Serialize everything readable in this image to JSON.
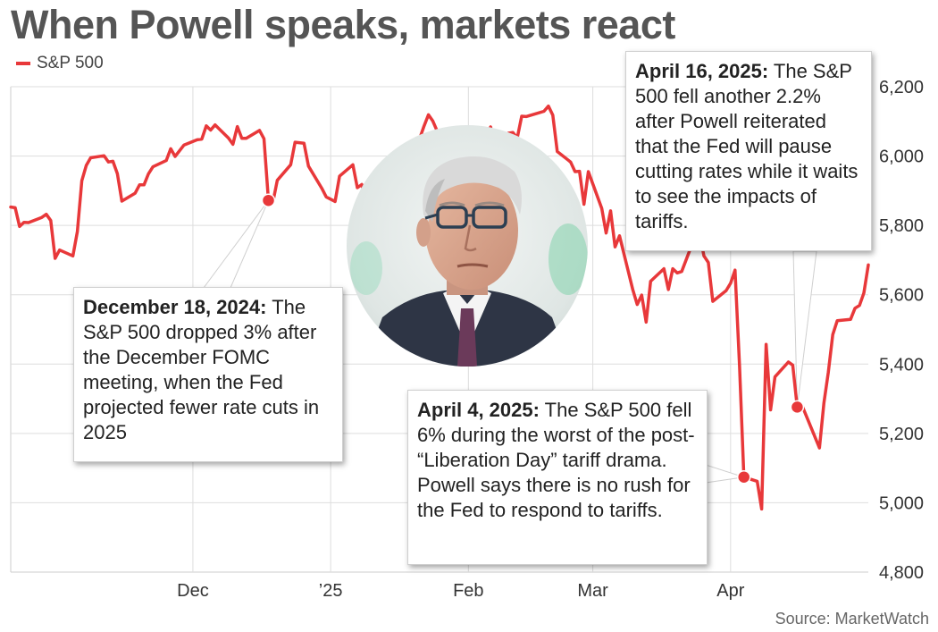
{
  "title": "When Powell speaks, markets react",
  "legend": {
    "label": "S&P 500",
    "color": "#e8383a"
  },
  "source": "Source: MarketWatch",
  "photo": {
    "subject": "portrait-photo"
  },
  "annotations": [
    {
      "date": "December 18, 2024:",
      "text": "The S&P 500 dropped 3% after the December FOMC meeting, when the Fed projected fewer rate cuts in 2025"
    },
    {
      "date": "April 4, 2025:",
      "text": "The S&P 500 fell 6% during the worst of the post- “Liberation Day” tariff drama. Powell says there is no rush for the Fed to respond to tariffs."
    },
    {
      "date": "April 16, 2025:",
      "text": "The S&P 500 fell another 2.2% after Powell reiterated that the Fed will pause cutting rates while it waits to see the impacts of tariffs."
    }
  ],
  "chart_data": {
    "type": "line",
    "title": "When Powell speaks, markets react",
    "series": [
      {
        "name": "S&P 500",
        "color": "#e8383a",
        "x": [
          "2024-10-21",
          "2024-10-22",
          "2024-10-23",
          "2024-10-24",
          "2024-10-25",
          "2024-10-28",
          "2024-10-29",
          "2024-10-30",
          "2024-10-31",
          "2024-11-01",
          "2024-11-04",
          "2024-11-05",
          "2024-11-06",
          "2024-11-07",
          "2024-11-08",
          "2024-11-11",
          "2024-11-12",
          "2024-11-13",
          "2024-11-14",
          "2024-11-15",
          "2024-11-18",
          "2024-11-19",
          "2024-11-20",
          "2024-11-21",
          "2024-11-22",
          "2024-11-25",
          "2024-11-26",
          "2024-11-27",
          "2024-11-29",
          "2024-12-02",
          "2024-12-03",
          "2024-12-04",
          "2024-12-05",
          "2024-12-06",
          "2024-12-09",
          "2024-12-10",
          "2024-12-11",
          "2024-12-12",
          "2024-12-13",
          "2024-12-16",
          "2024-12-17",
          "2024-12-18",
          "2024-12-19",
          "2024-12-20",
          "2024-12-23",
          "2024-12-24",
          "2024-12-26",
          "2024-12-27",
          "2024-12-30",
          "2024-12-31",
          "2025-01-02",
          "2025-01-03",
          "2025-01-06",
          "2025-01-07",
          "2025-01-08",
          "2025-01-10",
          "2025-01-13",
          "2025-01-14",
          "2025-01-15",
          "2025-01-16",
          "2025-01-17",
          "2025-01-21",
          "2025-01-22",
          "2025-01-23",
          "2025-01-24",
          "2025-01-27",
          "2025-01-28",
          "2025-01-29",
          "2025-01-30",
          "2025-01-31",
          "2025-02-03",
          "2025-02-04",
          "2025-02-05",
          "2025-02-06",
          "2025-02-07",
          "2025-02-10",
          "2025-02-11",
          "2025-02-12",
          "2025-02-13",
          "2025-02-14",
          "2025-02-18",
          "2025-02-19",
          "2025-02-20",
          "2025-02-21",
          "2025-02-24",
          "2025-02-25",
          "2025-02-26",
          "2025-02-27",
          "2025-02-28",
          "2025-03-03",
          "2025-03-04",
          "2025-03-05",
          "2025-03-06",
          "2025-03-07",
          "2025-03-10",
          "2025-03-11",
          "2025-03-12",
          "2025-03-13",
          "2025-03-14",
          "2025-03-17",
          "2025-03-18",
          "2025-03-19",
          "2025-03-20",
          "2025-03-21",
          "2025-03-24",
          "2025-03-25",
          "2025-03-26",
          "2025-03-27",
          "2025-03-28",
          "2025-03-31",
          "2025-04-01",
          "2025-04-02",
          "2025-04-03",
          "2025-04-04",
          "2025-04-07",
          "2025-04-08",
          "2025-04-09",
          "2025-04-10",
          "2025-04-11",
          "2025-04-14",
          "2025-04-15",
          "2025-04-16",
          "2025-04-17",
          "2025-04-21",
          "2025-04-22",
          "2025-04-23",
          "2025-04-24",
          "2025-04-25",
          "2025-04-28",
          "2025-04-29",
          "2025-04-30",
          "2025-05-01",
          "2025-05-02"
        ],
        "y": [
          5853,
          5851,
          5797,
          5809,
          5808,
          5823,
          5832,
          5814,
          5705,
          5729,
          5712,
          5782,
          5929,
          5973,
          5995,
          6001,
          5983,
          5985,
          5949,
          5870,
          5893,
          5917,
          5917,
          5949,
          5969,
          5987,
          6021,
          5999,
          6032,
          6047,
          6049,
          6087,
          6075,
          6090,
          6052,
          6034,
          6085,
          6051,
          6051,
          6074,
          6050,
          5872,
          5867,
          5930,
          5975,
          6040,
          6037,
          5971,
          5907,
          5882,
          5869,
          5942,
          5975,
          5909,
          5918,
          5827,
          5836,
          5842,
          5950,
          5937,
          5997,
          6049,
          6086,
          6119,
          6101,
          6012,
          6068,
          6039,
          6071,
          6041,
          5995,
          6037,
          6061,
          6084,
          6026,
          6066,
          6068,
          6052,
          6115,
          6114,
          6129,
          6144,
          6118,
          6013,
          5983,
          5955,
          5956,
          5861,
          5955,
          5849,
          5778,
          5842,
          5738,
          5770,
          5614,
          5572,
          5599,
          5521,
          5639,
          5675,
          5615,
          5675,
          5663,
          5667,
          5768,
          5777,
          5712,
          5693,
          5581,
          5612,
          5633,
          5671,
          5397,
          5074,
          5062,
          4982,
          5457,
          5268,
          5363,
          5406,
          5397,
          5276,
          5283,
          5158,
          5288,
          5376,
          5485,
          5525,
          5529,
          5561,
          5569,
          5605,
          5686
        ]
      }
    ],
    "xlabel": "",
    "ylabel": "",
    "x_tick_labels": [
      "Dec",
      "’25",
      "Feb",
      "Mar",
      "Apr"
    ],
    "x_tick_dates": [
      "2024-12-01",
      "2025-01-01",
      "2025-02-01",
      "2025-03-01",
      "2025-04-01"
    ],
    "y_ticks": [
      4800,
      5000,
      5200,
      5400,
      5600,
      5800,
      6000,
      6200
    ],
    "y_tick_labels": [
      "4,800",
      "5,000",
      "5,200",
      "5,400",
      "5,600",
      "5,800",
      "6,000",
      "6,200"
    ],
    "xlim": [
      "2024-10-21",
      "2025-05-02"
    ],
    "ylim": [
      4800,
      6200
    ],
    "grid": true,
    "legend_position": "top-left",
    "highlighted_points": [
      {
        "x": "2024-12-18",
        "y": 5872
      },
      {
        "x": "2025-04-04",
        "y": 5074
      },
      {
        "x": "2025-04-16",
        "y": 5276
      }
    ]
  }
}
